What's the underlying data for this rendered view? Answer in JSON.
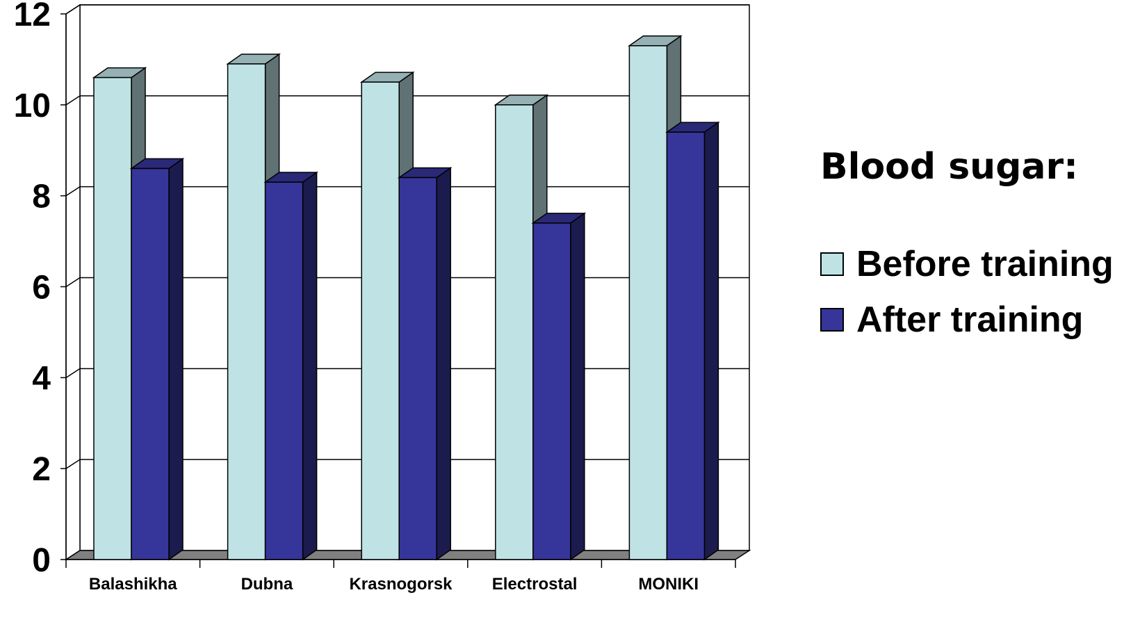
{
  "chart_data": {
    "type": "bar",
    "style": "3d-clustered-column",
    "categories": [
      "Balashikha",
      "Dubna",
      "Krasnogorsk",
      "Electrostal",
      "MONIKI"
    ],
    "series": [
      {
        "name": "Before training",
        "color": "#bfe3e5",
        "values": [
          10.6,
          10.9,
          10.5,
          10.0,
          11.3
        ]
      },
      {
        "name": "After training",
        "color": "#36359a",
        "values": [
          8.6,
          8.3,
          8.4,
          7.4,
          9.4
        ]
      }
    ],
    "yticks": [
      "0",
      "2",
      "4",
      "6",
      "8",
      "10",
      "12"
    ],
    "ylim": [
      0,
      12
    ],
    "grid": true,
    "legend_title": "Blood sugar:",
    "legend_position": "right"
  }
}
